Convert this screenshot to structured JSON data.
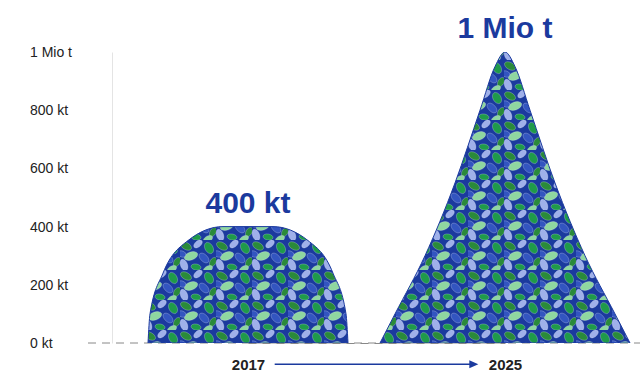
{
  "chart_data": {
    "type": "bar",
    "categories": [
      "2017",
      "2025"
    ],
    "values": [
      400,
      1000
    ],
    "value_labels": [
      "400 kt",
      "1 Mio t"
    ],
    "data_labels": true,
    "color": "#1b3a9e",
    "ylim": [
      0,
      1000
    ],
    "yticks": [
      {
        "value": 0,
        "label": "0 kt"
      },
      {
        "value": 200,
        "label": "200 kt"
      },
      {
        "value": 400,
        "label": "400 kt"
      },
      {
        "value": 600,
        "label": "600 kt"
      },
      {
        "value": 800,
        "label": "800 kt"
      },
      {
        "value": 1000,
        "label": "1 Mio t"
      }
    ],
    "grid": false
  }
}
